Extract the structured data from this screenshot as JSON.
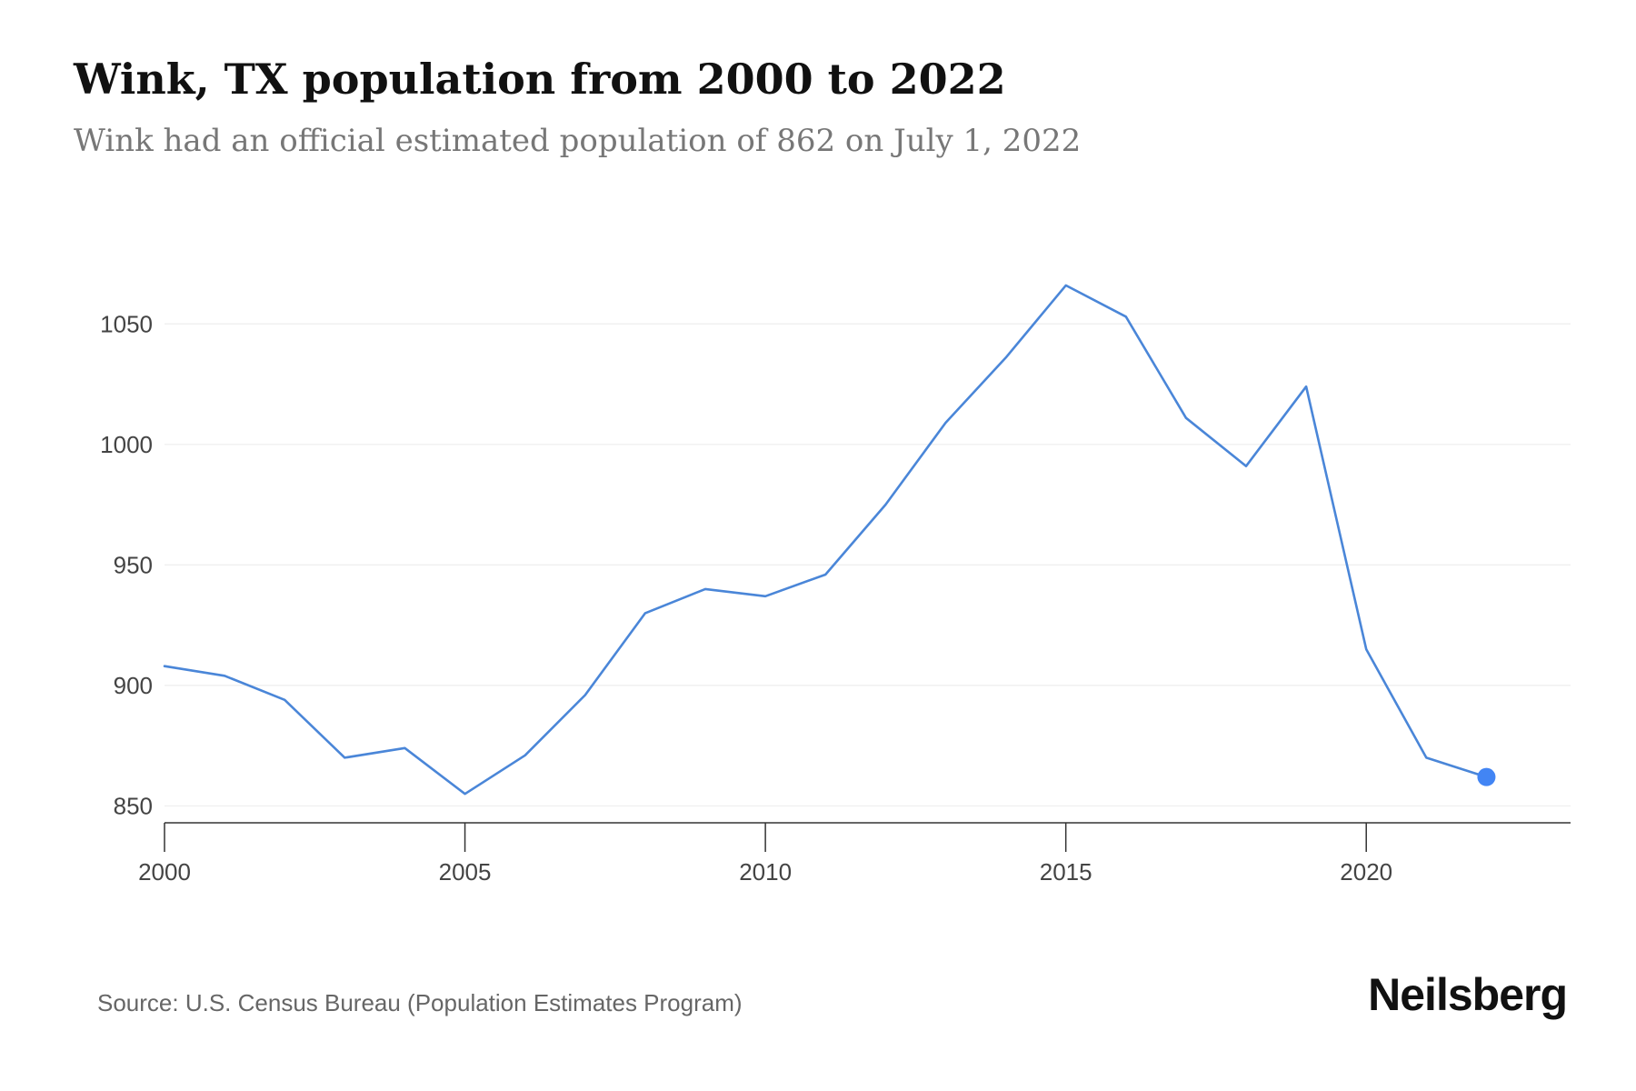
{
  "chart_data": {
    "type": "line",
    "title": "Wink, TX population from 2000 to 2022",
    "subtitle": "Wink had an official estimated population of 862 on July 1, 2022",
    "xlabel": "",
    "ylabel": "",
    "x": [
      2000,
      2001,
      2002,
      2003,
      2004,
      2005,
      2006,
      2007,
      2008,
      2009,
      2010,
      2011,
      2012,
      2013,
      2014,
      2015,
      2016,
      2017,
      2018,
      2019,
      2020,
      2021,
      2022
    ],
    "series": [
      {
        "values": [
          908,
          904,
          894,
          870,
          874,
          855,
          871,
          896,
          930,
          940,
          937,
          946,
          975,
          1009,
          1036,
          1066,
          1053,
          1011,
          991,
          1024,
          915,
          870,
          862
        ],
        "color": "#4a86d8"
      }
    ],
    "highlight_last_point": true,
    "highlight_color": "#4285f4",
    "xlim": [
      2000,
      2023.4
    ],
    "ylim": [
      843,
      1075
    ],
    "x_ticks": [
      "2000",
      "2005",
      "2010",
      "2015",
      "2020"
    ],
    "x_tick_values": [
      2000,
      2005,
      2010,
      2015,
      2020
    ],
    "y_ticks": [
      "850",
      "900",
      "950",
      "1000",
      "1050"
    ],
    "y_tick_values": [
      850,
      900,
      950,
      1000,
      1050
    ],
    "grid": true,
    "gridline_color": "#eeeeee"
  },
  "footer": {
    "source": "Source: U.S. Census Bureau (Population Estimates Program)",
    "brand": "Neilsberg"
  }
}
